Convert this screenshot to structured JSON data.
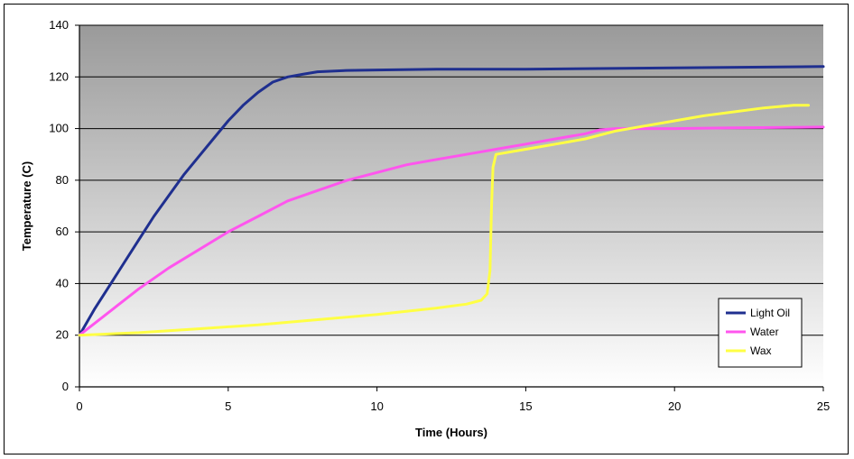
{
  "chart_data": {
    "type": "line",
    "title": "",
    "xlabel": "Time (Hours)",
    "ylabel": "Temperature (C)",
    "xlim": [
      0,
      25
    ],
    "ylim": [
      0,
      140
    ],
    "xticks": [
      0,
      5,
      10,
      15,
      20,
      25
    ],
    "yticks": [
      0,
      20,
      40,
      60,
      80,
      100,
      120,
      140
    ],
    "grid": "horizontal",
    "background": "gray-to-white gradient",
    "legend_position": "bottom-right",
    "series": [
      {
        "name": "Light Oil",
        "color": "#1f2f8f",
        "x": [
          0,
          0.5,
          1,
          1.5,
          2,
          2.5,
          3,
          3.5,
          4,
          4.5,
          5,
          5.5,
          6,
          6.5,
          7,
          7.5,
          8,
          9,
          10,
          12,
          15,
          20,
          25
        ],
        "y": [
          20,
          30,
          39,
          48,
          57,
          66,
          74,
          82,
          89,
          96,
          103,
          109,
          114,
          118,
          120,
          121,
          122,
          122.5,
          122.7,
          123,
          123,
          123.5,
          124
        ]
      },
      {
        "name": "Water",
        "color": "#ff55ee",
        "x": [
          0,
          1,
          2,
          3,
          4,
          5,
          6,
          7,
          8,
          9,
          10,
          11,
          12,
          13,
          14,
          15,
          16,
          17,
          17.5,
          18,
          20,
          22,
          25
        ],
        "y": [
          20,
          29,
          38,
          46,
          53,
          60,
          66,
          72,
          76,
          80,
          83,
          86,
          88,
          90,
          92,
          94,
          96,
          98,
          99.5,
          100,
          100,
          100.3,
          100.6
        ]
      },
      {
        "name": "Wax",
        "color": "#ffff44",
        "x": [
          0,
          2,
          4,
          6,
          8,
          10,
          12,
          13,
          13.5,
          13.7,
          13.8,
          13.85,
          13.9,
          14,
          15,
          16,
          17,
          18,
          19,
          20,
          21,
          22,
          23,
          24,
          24.5
        ],
        "y": [
          20,
          21,
          22.5,
          24,
          26,
          28,
          30.5,
          32,
          33.5,
          36,
          45,
          70,
          85,
          90,
          92,
          94,
          96,
          99,
          101,
          103,
          105,
          106.5,
          108,
          109,
          109
        ]
      }
    ]
  }
}
